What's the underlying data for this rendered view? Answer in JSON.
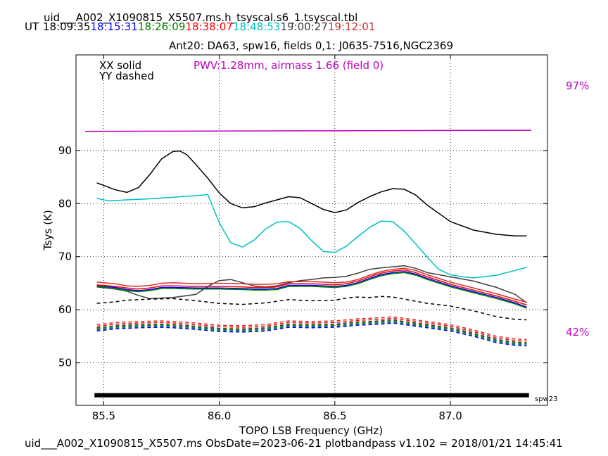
{
  "header": {
    "file_title": "uid___A002_X1090815_X5507.ms.h_tsyscal.s6_1.tsyscal.tbl",
    "ut_label": "UT",
    "times": [
      {
        "text": "18:09:35",
        "color": "#000000"
      },
      {
        "text": "18:15:31",
        "color": "#0000ff"
      },
      {
        "text": "18:26:09",
        "color": "#008000"
      },
      {
        "text": "18:38:07",
        "color": "#ff0000"
      },
      {
        "text": "18:48:53",
        "color": "#00bfbf"
      },
      {
        "text": "19:00:27",
        "color": "#404040"
      },
      {
        "text": "19:12:01",
        "color": "#d03030"
      }
    ],
    "subtitle": "Ant20: DA63,  spw16,  fields 0,1: J0635-7516,NGC2369"
  },
  "legend": {
    "xx": "XX solid",
    "yy": "YY dashed",
    "pwv": "PWV:1.28mm, airmass 1.66 (field 0)"
  },
  "right_labels": {
    "top": "97%",
    "bottom": "42%"
  },
  "spw_label": "spw23",
  "footer": "uid___A002_X1090815_X5507.ms  ObsDate=2023-06-21   plotbandpass v1.102 = 2018/01/21 14:45:41",
  "colors": {
    "magenta": "#bf00bf",
    "black": "#000000",
    "cyan": "#00bfbf",
    "red": "#d03030",
    "green": "#008000",
    "gray": "#404040",
    "blue": "#0000ff",
    "teal": "#1f8080"
  },
  "chart_data": {
    "type": "line",
    "xlabel": "TOPO LSB Frequency (GHz)",
    "ylabel": "Tsys (K)",
    "xlim": [
      85.38,
      87.42
    ],
    "ylim": [
      42,
      108
    ],
    "xticks": [
      85.5,
      86.0,
      86.5,
      87.0
    ],
    "xtick_labels": [
      "85.5",
      "86.0",
      "86.5",
      "87.0"
    ],
    "yticks": [
      50,
      60,
      70,
      80,
      90
    ],
    "ytick_labels": [
      "50",
      "60",
      "70",
      "80",
      "90"
    ],
    "grid": true,
    "transmission": {
      "name": "atmospheric transmission",
      "color": "#bf00bf",
      "x": [
        85.42,
        87.35
      ],
      "y": [
        93.6,
        93.8
      ]
    },
    "spw_bar": {
      "x": [
        85.46,
        87.34
      ],
      "y": 43.9
    },
    "series": [
      {
        "pol": "XX",
        "color": "#000000",
        "dash": false,
        "x": [
          85.47,
          85.55,
          85.6,
          85.65,
          85.7,
          85.75,
          85.8,
          85.83,
          85.86,
          85.9,
          85.95,
          86.0,
          86.05,
          86.1,
          86.15,
          86.2,
          86.25,
          86.3,
          86.35,
          86.4,
          86.45,
          86.5,
          86.55,
          86.6,
          86.65,
          86.7,
          86.75,
          86.8,
          86.85,
          86.9,
          87.0,
          87.1,
          87.2,
          87.28,
          87.33
        ],
        "y": [
          83.9,
          82.6,
          82.1,
          83.0,
          85.5,
          88.4,
          89.8,
          89.9,
          89.2,
          87.3,
          84.8,
          82.0,
          80.0,
          79.2,
          79.4,
          80.1,
          80.7,
          81.3,
          81.1,
          80.0,
          78.9,
          78.3,
          78.8,
          80.2,
          81.3,
          82.2,
          82.8,
          82.7,
          81.6,
          79.7,
          76.6,
          75.0,
          74.2,
          73.9,
          73.9
        ]
      },
      {
        "pol": "XX",
        "color": "#00bfbf",
        "dash": false,
        "x": [
          85.47,
          85.52,
          85.6,
          85.7,
          85.8,
          85.9,
          85.95,
          86.0,
          86.05,
          86.1,
          86.15,
          86.2,
          86.25,
          86.3,
          86.35,
          86.4,
          86.45,
          86.5,
          86.55,
          86.6,
          86.65,
          86.7,
          86.75,
          86.8,
          86.85,
          86.9,
          86.95,
          87.0,
          87.05,
          87.1,
          87.2,
          87.28,
          87.33
        ],
        "y": [
          81.0,
          80.5,
          80.7,
          80.9,
          81.2,
          81.5,
          81.7,
          76.4,
          72.6,
          71.8,
          73.1,
          75.2,
          76.5,
          76.6,
          75.3,
          73.0,
          71.0,
          70.8,
          72.0,
          73.8,
          75.5,
          76.7,
          76.6,
          74.8,
          72.4,
          69.9,
          67.6,
          66.6,
          66.2,
          66.0,
          66.5,
          67.4,
          68.0
        ]
      },
      {
        "pol": "XX",
        "color": "#404040",
        "dash": false,
        "x": [
          85.47,
          85.55,
          85.6,
          85.65,
          85.7,
          85.8,
          85.9,
          85.95,
          86.0,
          86.05,
          86.1,
          86.15,
          86.2,
          86.25,
          86.3,
          86.35,
          86.4,
          86.45,
          86.5,
          86.55,
          86.6,
          86.65,
          86.7,
          86.75,
          86.8,
          86.85,
          86.9,
          87.0,
          87.1,
          87.2,
          87.28,
          87.33
        ],
        "y": [
          64.3,
          63.9,
          63.5,
          62.7,
          62.1,
          62.3,
          62.9,
          64.4,
          65.5,
          65.7,
          65.1,
          64.5,
          64.3,
          64.5,
          65.1,
          65.5,
          65.7,
          66.0,
          66.1,
          66.3,
          66.9,
          67.6,
          67.9,
          68.1,
          68.3,
          67.8,
          67.0,
          66.2,
          65.4,
          64.2,
          62.9,
          61.3
        ]
      },
      {
        "pol": "XX",
        "color": "#d03030",
        "dash": false,
        "x": [
          85.47,
          85.55,
          85.6,
          85.65,
          85.7,
          85.75,
          85.8,
          85.9,
          86.0,
          86.1,
          86.15,
          86.2,
          86.25,
          86.3,
          86.35,
          86.4,
          86.45,
          86.5,
          86.55,
          86.6,
          86.65,
          86.7,
          86.75,
          86.8,
          86.85,
          86.9,
          87.0,
          87.1,
          87.2,
          87.28,
          87.33
        ],
        "y": [
          65.2,
          64.9,
          64.5,
          64.4,
          64.6,
          65.0,
          65.1,
          64.9,
          65.0,
          64.9,
          64.8,
          64.8,
          64.9,
          65.3,
          65.3,
          65.3,
          65.2,
          65.1,
          65.2,
          65.7,
          66.5,
          67.2,
          67.6,
          67.8,
          67.4,
          66.6,
          65.2,
          64.1,
          63.0,
          62.0,
          61.4
        ]
      },
      {
        "pol": "XX",
        "color": "#ff0000",
        "dash": false,
        "x": [
          85.47,
          85.55,
          85.6,
          85.65,
          85.7,
          85.75,
          85.8,
          85.9,
          86.0,
          86.1,
          86.15,
          86.2,
          86.25,
          86.3,
          86.35,
          86.4,
          86.45,
          86.5,
          86.55,
          86.6,
          86.65,
          86.7,
          86.75,
          86.8,
          86.85,
          86.9,
          87.0,
          87.1,
          87.2,
          87.28,
          87.33
        ],
        "y": [
          64.7,
          64.4,
          64.1,
          63.9,
          64.1,
          64.5,
          64.5,
          64.4,
          64.4,
          64.3,
          64.2,
          64.2,
          64.3,
          64.9,
          64.9,
          64.9,
          64.8,
          64.7,
          64.9,
          65.4,
          66.2,
          66.9,
          67.3,
          67.5,
          67.0,
          66.2,
          64.8,
          63.7,
          62.6,
          61.6,
          60.9
        ]
      },
      {
        "pol": "XX",
        "color": "#0000ff",
        "dash": false,
        "x": [
          85.47,
          85.55,
          85.6,
          85.65,
          85.7,
          85.75,
          85.8,
          85.9,
          86.0,
          86.1,
          86.15,
          86.2,
          86.25,
          86.3,
          86.35,
          86.4,
          86.45,
          86.5,
          86.55,
          86.6,
          86.65,
          86.7,
          86.75,
          86.8,
          86.85,
          86.9,
          87.0,
          87.1,
          87.2,
          87.28,
          87.33
        ],
        "y": [
          64.5,
          64.2,
          63.8,
          63.6,
          63.8,
          64.2,
          64.2,
          64.1,
          64.1,
          64.0,
          63.9,
          63.9,
          64.0,
          64.6,
          64.6,
          64.6,
          64.5,
          64.4,
          64.6,
          65.1,
          65.9,
          66.6,
          67.0,
          67.2,
          66.7,
          65.9,
          64.5,
          63.4,
          62.3,
          61.3,
          60.5
        ]
      },
      {
        "pol": "XX",
        "color": "#008000",
        "dash": false,
        "x": [
          85.47,
          85.55,
          85.6,
          85.65,
          85.7,
          85.75,
          85.8,
          85.9,
          86.0,
          86.1,
          86.15,
          86.2,
          86.25,
          86.3,
          86.35,
          86.4,
          86.45,
          86.5,
          86.55,
          86.6,
          86.65,
          86.7,
          86.75,
          86.8,
          86.85,
          86.9,
          87.0,
          87.1,
          87.2,
          87.28,
          87.33
        ],
        "y": [
          64.4,
          64.0,
          63.6,
          63.4,
          63.6,
          64.0,
          64.0,
          63.9,
          63.9,
          63.8,
          63.7,
          63.7,
          63.8,
          64.4,
          64.4,
          64.4,
          64.3,
          64.2,
          64.4,
          64.9,
          65.7,
          66.4,
          66.8,
          67.0,
          66.5,
          65.7,
          64.3,
          63.2,
          62.1,
          61.1,
          60.3
        ]
      },
      {
        "pol": "YY",
        "color": "#000000",
        "dash": true,
        "x": [
          85.47,
          85.55,
          85.6,
          85.7,
          85.8,
          85.9,
          86.0,
          86.1,
          86.2,
          86.3,
          86.4,
          86.5,
          86.55,
          86.6,
          86.65,
          86.7,
          86.75,
          86.8,
          86.9,
          87.0,
          87.1,
          87.2,
          87.28,
          87.33
        ],
        "y": [
          61.2,
          61.5,
          61.8,
          62.0,
          62.1,
          61.7,
          61.2,
          61.0,
          61.3,
          61.9,
          61.7,
          61.8,
          62.2,
          62.4,
          62.3,
          62.5,
          62.4,
          62.0,
          61.2,
          60.7,
          59.8,
          58.7,
          58.2,
          58.1
        ]
      },
      {
        "pol": "YY",
        "color": "#d03030",
        "dash": true,
        "x": [
          85.47,
          85.55,
          85.65,
          85.75,
          85.8,
          85.9,
          86.0,
          86.1,
          86.2,
          86.3,
          86.4,
          86.5,
          86.6,
          86.7,
          86.75,
          86.8,
          86.9,
          87.0,
          87.1,
          87.2,
          87.28,
          87.33
        ],
        "y": [
          57.2,
          57.6,
          57.8,
          57.9,
          57.8,
          57.5,
          57.1,
          57.0,
          57.2,
          57.9,
          57.8,
          57.9,
          58.3,
          58.5,
          58.7,
          58.4,
          57.8,
          57.2,
          56.2,
          55.0,
          54.5,
          54.4
        ]
      },
      {
        "pol": "YY",
        "color": "#ff0000",
        "dash": true,
        "x": [
          85.47,
          85.55,
          85.65,
          85.75,
          85.8,
          85.9,
          86.0,
          86.1,
          86.2,
          86.3,
          86.4,
          86.5,
          86.6,
          86.7,
          86.75,
          86.8,
          86.9,
          87.0,
          87.1,
          87.2,
          87.28,
          87.33
        ],
        "y": [
          56.9,
          57.3,
          57.5,
          57.6,
          57.5,
          57.2,
          56.8,
          56.7,
          56.9,
          57.6,
          57.5,
          57.6,
          58.0,
          58.2,
          58.4,
          58.1,
          57.5,
          56.9,
          55.9,
          54.7,
          54.2,
          54.1
        ]
      },
      {
        "pol": "YY",
        "color": "#404040",
        "dash": true,
        "x": [
          85.47,
          85.55,
          85.65,
          85.75,
          85.8,
          85.9,
          86.0,
          86.1,
          86.2,
          86.3,
          86.4,
          86.5,
          86.6,
          86.7,
          86.75,
          86.8,
          86.9,
          87.0,
          87.1,
          87.2,
          87.28,
          87.33
        ],
        "y": [
          56.6,
          57.0,
          57.2,
          57.3,
          57.2,
          56.9,
          56.5,
          56.4,
          56.6,
          57.3,
          57.2,
          57.3,
          57.7,
          57.9,
          58.1,
          57.8,
          57.2,
          56.6,
          55.6,
          54.4,
          53.9,
          53.8
        ]
      },
      {
        "pol": "YY",
        "color": "#008000",
        "dash": true,
        "x": [
          85.47,
          85.55,
          85.65,
          85.75,
          85.8,
          85.9,
          86.0,
          86.1,
          86.2,
          86.3,
          86.4,
          86.5,
          86.6,
          86.7,
          86.75,
          86.8,
          86.9,
          87.0,
          87.1,
          87.2,
          87.28,
          87.33
        ],
        "y": [
          56.4,
          56.8,
          57.0,
          57.1,
          57.0,
          56.7,
          56.3,
          56.2,
          56.4,
          57.1,
          57.0,
          57.1,
          57.5,
          57.7,
          57.9,
          57.6,
          57.0,
          56.4,
          55.4,
          54.2,
          53.7,
          53.6
        ]
      },
      {
        "pol": "YY",
        "color": "#1f8080",
        "dash": true,
        "x": [
          85.47,
          85.55,
          85.65,
          85.75,
          85.8,
          85.9,
          86.0,
          86.1,
          86.2,
          86.3,
          86.4,
          86.5,
          86.6,
          86.7,
          86.75,
          86.8,
          86.9,
          87.0,
          87.1,
          87.2,
          87.28,
          87.33
        ],
        "y": [
          56.2,
          56.6,
          56.8,
          56.9,
          56.8,
          56.5,
          56.1,
          56.0,
          56.2,
          56.9,
          56.8,
          56.9,
          57.3,
          57.5,
          57.7,
          57.4,
          56.8,
          56.2,
          55.2,
          54.0,
          53.5,
          53.4
        ]
      },
      {
        "pol": "YY",
        "color": "#0000ff",
        "dash": true,
        "x": [
          85.47,
          85.55,
          85.65,
          85.75,
          85.8,
          85.9,
          86.0,
          86.1,
          86.2,
          86.3,
          86.4,
          86.5,
          86.6,
          86.7,
          86.75,
          86.8,
          86.9,
          87.0,
          87.1,
          87.2,
          87.28,
          87.33
        ],
        "y": [
          56.0,
          56.4,
          56.6,
          56.7,
          56.6,
          56.3,
          55.9,
          55.8,
          56.0,
          56.7,
          56.6,
          56.7,
          57.1,
          57.3,
          57.5,
          57.2,
          56.6,
          56.0,
          55.0,
          53.8,
          53.3,
          53.2
        ]
      }
    ]
  }
}
